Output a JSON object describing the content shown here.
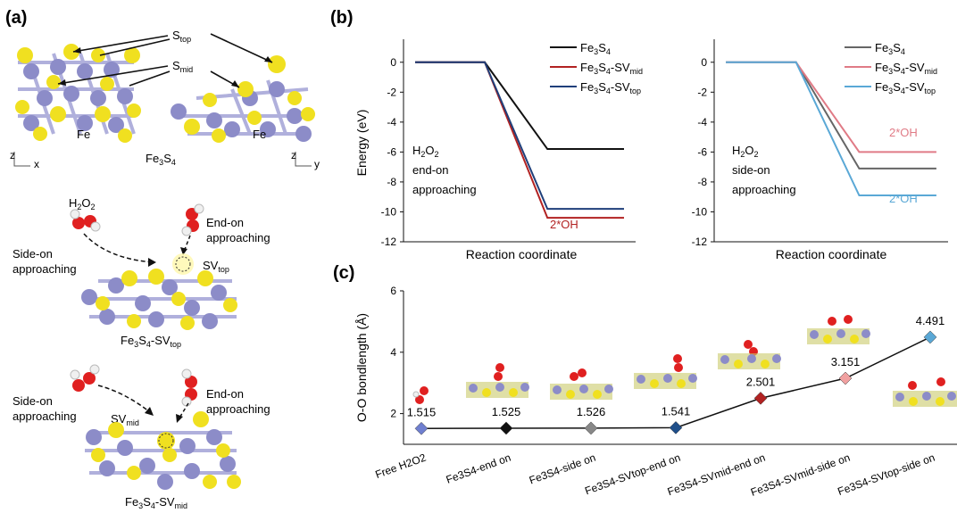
{
  "panels": {
    "a": "(a)",
    "b": "(b)",
    "c": "(c)"
  },
  "panel_a": {
    "s_top": "S",
    "s_top_sub": "top",
    "s_mid": "S",
    "s_mid_sub": "mid",
    "fe_left": "Fe",
    "fe_right": "Fe",
    "compound": {
      "main": "Fe",
      "sub1": "3",
      "mid": "S",
      "sub2": "4"
    },
    "axis_left": {
      "z": "z",
      "x": "x"
    },
    "axis_right": {
      "z": "z",
      "y": "y"
    },
    "h2o2": {
      "h": "H",
      "s1": "2",
      "o": "O",
      "s2": "2"
    },
    "end_on_1": "End-on",
    "end_on_2": "approaching",
    "side_on_1": "Side-on",
    "side_on_2": "approaching",
    "sv_top": {
      "main": "SV",
      "sub": "top"
    },
    "sv_mid": {
      "main": "SV",
      "sub": "mid"
    },
    "label_top": {
      "a": "Fe",
      "s1": "3",
      "b": "S",
      "s2": "4",
      "c": "-SV",
      "sub": "top"
    },
    "label_mid": {
      "a": "Fe",
      "s1": "3",
      "b": "S",
      "s2": "4",
      "c": "-SV",
      "sub": "mid"
    },
    "colors": {
      "fe": "#8c8cc8",
      "s": "#f0e020",
      "o": "#e02020",
      "h": "#f0f0f0"
    }
  },
  "chart_data": [
    {
      "type": "line",
      "panel": "b-left",
      "xlabel": "Reaction coordinate",
      "ylabel": "Energy (eV)",
      "ylim": [
        -12,
        1
      ],
      "yticks": [
        0,
        -2,
        -4,
        -6,
        -8,
        -10,
        -12
      ],
      "annotation": [
        "H2O2",
        "end-on",
        "approaching"
      ],
      "series": [
        {
          "name": "Fe3S4",
          "color": "#111111",
          "values": [
            0,
            0,
            -5.8,
            -5.8
          ]
        },
        {
          "name": "Fe3S4-SVmid",
          "color": "#b22222",
          "values": [
            0,
            0,
            -10.4,
            -10.4
          ]
        },
        {
          "name": "Fe3S4-SVtop",
          "color": "#1f3f7a",
          "values": [
            0,
            0,
            -9.8,
            -9.8
          ]
        }
      ],
      "point_labels": [
        {
          "text": "2*OH",
          "color": "#b22222"
        }
      ]
    },
    {
      "type": "line",
      "panel": "b-right",
      "xlabel": "Reaction coordinate",
      "ylim": [
        -12,
        1
      ],
      "yticks": [
        0,
        -2,
        -4,
        -6,
        -8,
        -10,
        -12
      ],
      "annotation": [
        "H2O2",
        "side-on",
        "approaching"
      ],
      "series": [
        {
          "name": "Fe3S4",
          "color": "#666666",
          "values": [
            0,
            0,
            -7.1,
            -7.1
          ]
        },
        {
          "name": "Fe3S4-SVmid",
          "color": "#e07b86",
          "values": [
            0,
            0,
            -6.0,
            -6.0
          ]
        },
        {
          "name": "Fe3S4-SVtop",
          "color": "#5aa8d6",
          "values": [
            0,
            0,
            -8.9,
            -8.9
          ]
        }
      ],
      "point_labels": [
        {
          "text": "2*OH",
          "color": "#e07b86"
        },
        {
          "text": "2*OH",
          "color": "#5aa8d6"
        }
      ]
    },
    {
      "type": "line",
      "panel": "c",
      "ylabel": "O-O bondlength (Å)",
      "ylim": [
        1,
        6
      ],
      "yticks": [
        2,
        4,
        6
      ],
      "categories": [
        "Free H2O2",
        "Fe3S4-end on",
        "Fe3S4-side on",
        "Fe3S4-SVtop-end on",
        "Fe3S4-SVmid-end on",
        "Fe3S4-SVmid-side on",
        "Fe3S4-SVtop-side on"
      ],
      "values": [
        1.515,
        1.525,
        1.526,
        1.541,
        2.501,
        3.151,
        4.491
      ],
      "value_labels": [
        "1.515",
        "1.525",
        "1.526",
        "1.541",
        "2.501",
        "3.151",
        "4.491"
      ],
      "marker_colors": [
        "#6f7fd0",
        "#111111",
        "#888888",
        "#1f4f8a",
        "#b22222",
        "#f0a0a0",
        "#5aa8d6"
      ]
    }
  ]
}
